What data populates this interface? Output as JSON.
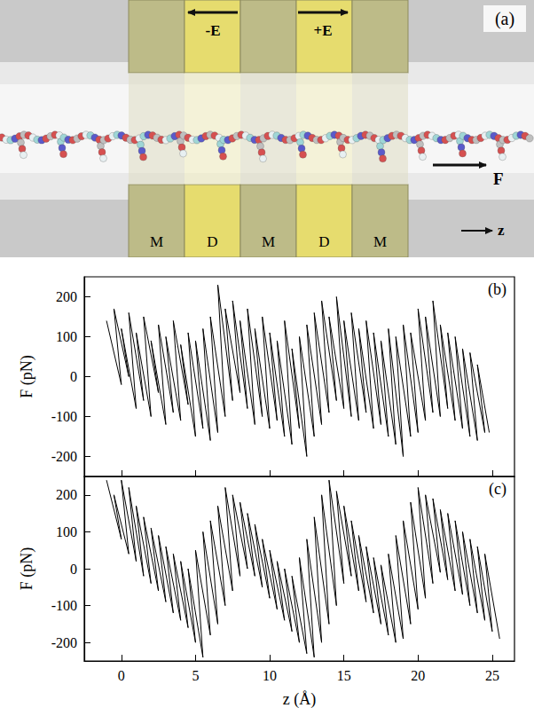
{
  "diagram": {
    "panel_label": "(a)",
    "field_labels": [
      "-E",
      "+E"
    ],
    "force_label": "F",
    "axis_label": "z",
    "segments": [
      "M",
      "D",
      "M",
      "D",
      "M"
    ]
  },
  "chart_data": [
    {
      "type": "line",
      "title": "(b)",
      "ylabel": "F (pN)",
      "color": "#000000",
      "tick_labels": "y",
      "xlim": [
        -2.5,
        26.5
      ],
      "xticks": [
        0,
        5,
        10,
        15,
        20,
        25
      ],
      "ylim": [
        -250,
        250
      ],
      "yticks": [
        -200,
        -100,
        0,
        100,
        200
      ],
      "x": [
        -1.0,
        0.0,
        -0.5,
        0.5,
        0.0,
        1.0,
        0.5,
        1.5,
        1.0,
        2.0,
        1.5,
        2.5,
        2.0,
        3.0,
        2.5,
        3.5,
        3.0,
        4.0,
        3.5,
        4.5,
        4.0,
        5.0,
        4.5,
        5.5,
        5.0,
        6.0,
        5.5,
        6.5,
        6.0,
        7.0,
        6.5,
        7.5,
        7.0,
        8.0,
        7.5,
        8.5,
        8.0,
        9.0,
        8.5,
        9.5,
        9.0,
        10.0,
        9.5,
        10.5,
        10.0,
        11.0,
        10.5,
        11.5,
        11.0,
        12.0,
        11.5,
        12.5,
        12.0,
        13.0,
        12.5,
        13.5,
        13.0,
        14.0,
        13.5,
        14.5,
        14.0,
        15.0,
        14.5,
        15.5,
        15.0,
        16.0,
        15.5,
        16.5,
        16.0,
        17.0,
        16.5,
        17.5,
        17.0,
        18.0,
        17.5,
        18.5,
        18.0,
        19.0,
        18.5,
        19.5,
        19.0,
        20.0,
        19.5,
        20.5,
        20.0,
        21.0,
        20.5,
        21.5,
        21.0,
        22.0,
        21.5,
        22.5,
        22.0,
        23.0,
        22.5,
        23.5,
        23.0,
        24.0,
        23.5,
        24.5,
        24.0,
        24.8
      ],
      "values": [
        140,
        -20,
        170,
        0,
        120,
        -80,
        160,
        -60,
        110,
        -100,
        150,
        -40,
        90,
        -120,
        130,
        -90,
        100,
        -110,
        140,
        -70,
        80,
        -150,
        110,
        -130,
        90,
        -160,
        120,
        -140,
        150,
        -100,
        230,
        -60,
        170,
        -40,
        190,
        -80,
        140,
        -120,
        170,
        -100,
        120,
        -130,
        150,
        -110,
        110,
        -150,
        90,
        -170,
        140,
        -130,
        70,
        -200,
        100,
        -150,
        130,
        -120,
        160,
        -90,
        190,
        -60,
        150,
        -80,
        200,
        -100,
        140,
        -110,
        160,
        -90,
        120,
        -130,
        140,
        -120,
        110,
        -150,
        90,
        -170,
        120,
        -200,
        100,
        -150,
        130,
        -140,
        110,
        -110,
        170,
        -90,
        150,
        -100,
        190,
        -80,
        130,
        -110,
        110,
        -130,
        100,
        -150,
        70,
        -160,
        60,
        -140,
        30,
        -140
      ]
    },
    {
      "type": "line",
      "title": "(c)",
      "xlabel": "z (Å)",
      "ylabel": "F (pN)",
      "color": "#000000",
      "tick_labels": true,
      "xlim": [
        -2.5,
        26.5
      ],
      "xticks": [
        0,
        5,
        10,
        15,
        20,
        25
      ],
      "ylim": [
        -250,
        250
      ],
      "yticks": [
        -200,
        -100,
        0,
        100,
        200
      ],
      "x": [
        -1.0,
        0.0,
        -0.5,
        0.5,
        0.0,
        1.0,
        0.5,
        1.5,
        1.0,
        2.0,
        1.5,
        2.5,
        2.0,
        3.0,
        2.5,
        3.5,
        3.0,
        4.0,
        3.5,
        4.5,
        4.0,
        5.0,
        4.5,
        5.5,
        5.0,
        6.0,
        5.5,
        6.5,
        6.0,
        7.0,
        6.5,
        7.5,
        7.0,
        8.0,
        7.5,
        8.5,
        8.0,
        9.0,
        8.5,
        9.5,
        9.0,
        10.0,
        9.5,
        10.5,
        10.0,
        11.0,
        10.5,
        11.5,
        11.0,
        12.0,
        11.5,
        12.5,
        12.0,
        13.0,
        12.5,
        13.5,
        13.0,
        14.0,
        13.5,
        14.5,
        14.0,
        15.0,
        14.5,
        15.5,
        15.0,
        16.0,
        15.5,
        16.5,
        16.0,
        17.0,
        16.5,
        17.5,
        17.0,
        18.0,
        17.5,
        18.5,
        18.0,
        19.0,
        18.5,
        19.5,
        19.0,
        20.0,
        19.5,
        20.5,
        20.0,
        21.0,
        20.5,
        21.5,
        21.0,
        22.0,
        21.5,
        22.5,
        22.0,
        23.0,
        22.5,
        23.5,
        23.0,
        24.0,
        23.5,
        24.5,
        24.0,
        25.0,
        24.5,
        25.5
      ],
      "values": [
        240,
        80,
        200,
        40,
        240,
        20,
        220,
        -20,
        170,
        -40,
        140,
        -60,
        110,
        -90,
        90,
        -120,
        60,
        -140,
        40,
        -160,
        20,
        -200,
        0,
        -240,
        50,
        -180,
        100,
        -150,
        130,
        -100,
        170,
        -60,
        220,
        -20,
        200,
        0,
        180,
        -20,
        150,
        -50,
        120,
        -80,
        80,
        -110,
        50,
        -140,
        20,
        -170,
        0,
        -200,
        -20,
        -230,
        30,
        -240,
        80,
        -200,
        140,
        -150,
        200,
        -100,
        240,
        -40,
        210,
        -20,
        170,
        -60,
        130,
        -90,
        90,
        -120,
        60,
        -150,
        30,
        -180,
        10,
        -200,
        40,
        -190,
        90,
        -150,
        130,
        -110,
        180,
        -80,
        220,
        -40,
        200,
        -10,
        190,
        -30,
        160,
        -60,
        150,
        -70,
        130,
        -100,
        100,
        -120,
        80,
        -140,
        60,
        -170,
        40,
        -190
      ]
    }
  ]
}
